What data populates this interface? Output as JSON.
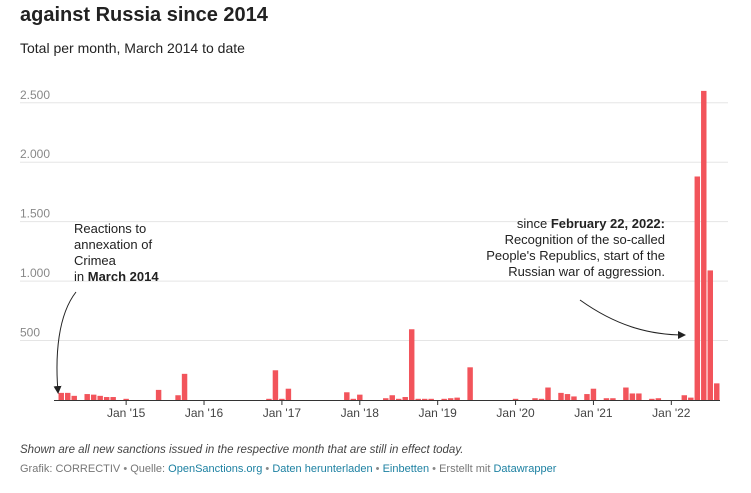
{
  "header": {
    "title": "against Russia since 2014",
    "subtitle": "Total per month, March 2014 to date"
  },
  "annotations": {
    "left": {
      "line1": "Reactions to",
      "line2": "annexation of",
      "line3": "Crimea",
      "line4_prefix": "in ",
      "line4_bold": "March 2014"
    },
    "right": {
      "line1_prefix": "since ",
      "line1_bold": "February 22, 2022:",
      "line2": "Recognition of the so-called",
      "line3": "People's Republics, start of the",
      "line4": "Russian war of aggression."
    }
  },
  "footer": {
    "notes": "Shown are all new sanctions issued in the respective month that are still in effect today.",
    "grafik_label": "Grafik:",
    "grafik_value": "CORRECTIV",
    "quelle_label": "Quelle:",
    "quelle_link": "OpenSanctions.org",
    "download_link": "Daten herunterladen",
    "embed_link": "Einbetten",
    "created_label": "Erstellt mit",
    "created_link": "Datawrapper",
    "separator": "•"
  },
  "colors": {
    "bar": "#f2545b",
    "grid": "#e5e5e5",
    "axis": "#333333",
    "tick_text": "#888888"
  },
  "chart_data": {
    "type": "bar",
    "title": "against Russia since 2014",
    "subtitle": "Total per month, March 2014 to date",
    "xlabel": "",
    "ylabel": "",
    "ylim": [
      0,
      2700
    ],
    "yticks": [
      500,
      1000,
      1500,
      2000,
      2500
    ],
    "ytick_labels": [
      "500",
      "1.000",
      "1.500",
      "2.000",
      "2.500"
    ],
    "xtick_labels": [
      {
        "label": "Jan '15",
        "index": 10
      },
      {
        "label": "Jan '16",
        "index": 22
      },
      {
        "label": "Jan '17",
        "index": 34
      },
      {
        "label": "Jan '18",
        "index": 46
      },
      {
        "label": "Jan '19",
        "index": 58
      },
      {
        "label": "Jan '20",
        "index": 70
      },
      {
        "label": "Jan '21",
        "index": 82
      },
      {
        "label": "Jan '22",
        "index": 94
      }
    ],
    "start_month": "2014-03",
    "values": [
      60,
      60,
      35,
      0,
      50,
      45,
      35,
      25,
      25,
      0,
      10,
      0,
      0,
      0,
      0,
      85,
      0,
      0,
      40,
      220,
      0,
      0,
      0,
      0,
      0,
      0,
      0,
      0,
      0,
      0,
      0,
      0,
      10,
      250,
      10,
      95,
      0,
      0,
      0,
      0,
      0,
      0,
      0,
      0,
      65,
      10,
      45,
      0,
      0,
      0,
      15,
      40,
      10,
      25,
      595,
      10,
      10,
      10,
      0,
      10,
      15,
      20,
      0,
      275,
      0,
      0,
      0,
      0,
      0,
      0,
      10,
      0,
      0,
      15,
      10,
      105,
      0,
      60,
      50,
      30,
      0,
      50,
      95,
      0,
      15,
      15,
      0,
      105,
      55,
      55,
      0,
      10,
      15,
      0,
      0,
      0,
      40,
      20,
      1880,
      2600,
      1090,
      140
    ]
  }
}
